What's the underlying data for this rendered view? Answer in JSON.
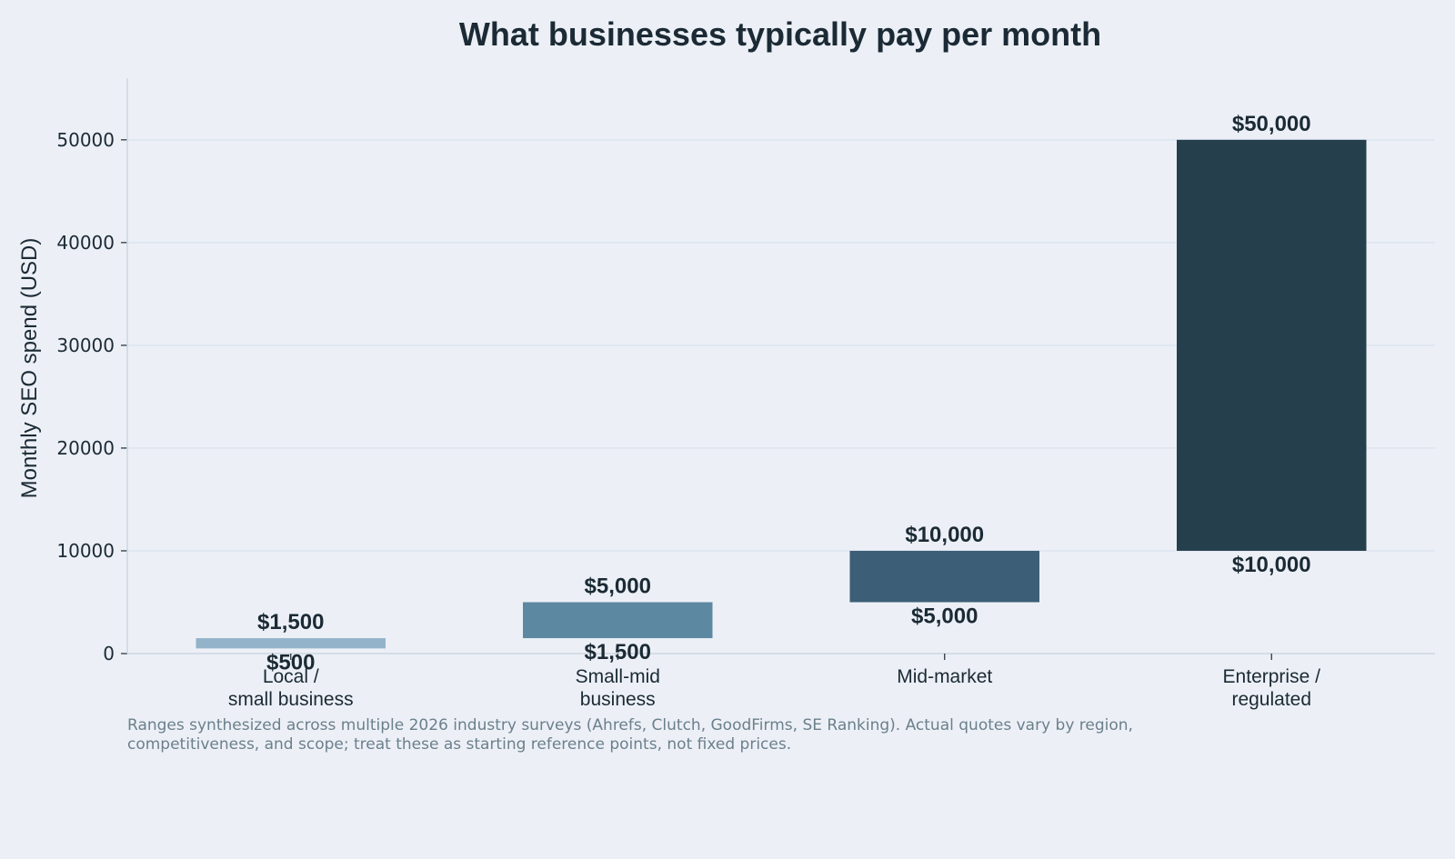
{
  "chart_data": {
    "type": "bar",
    "title": "What businesses typically pay per month",
    "xlabel": "",
    "ylabel": "Monthly SEO spend (USD)",
    "ylim": [
      0,
      56000
    ],
    "yticks": [
      0,
      10000,
      20000,
      30000,
      40000,
      50000
    ],
    "grid": true,
    "categories": [
      [
        "Local /",
        "small business"
      ],
      [
        "Small-mid",
        "business"
      ],
      [
        "Mid-market"
      ],
      [
        "Enterprise /",
        "regulated"
      ]
    ],
    "ranges": [
      {
        "low": 500,
        "high": 1500,
        "low_label": "$500",
        "high_label": "$1,500",
        "color": "#93b3c9"
      },
      {
        "low": 1500,
        "high": 5000,
        "low_label": "$1,500",
        "high_label": "$5,000",
        "color": "#5c88a2"
      },
      {
        "low": 5000,
        "high": 10000,
        "low_label": "$5,000",
        "high_label": "$10,000",
        "color": "#3c5f77"
      },
      {
        "low": 10000,
        "high": 50000,
        "low_label": "$10,000",
        "high_label": "$50,000",
        "color": "#253f4d"
      }
    ]
  },
  "footnote": "Ranges synthesized across multiple 2026 industry surveys (Ahrefs, Clutch, GoodFirms, SE Ranking). Actual quotes vary by region, competitiveness, and scope; treat these as starting reference points, not fixed prices."
}
